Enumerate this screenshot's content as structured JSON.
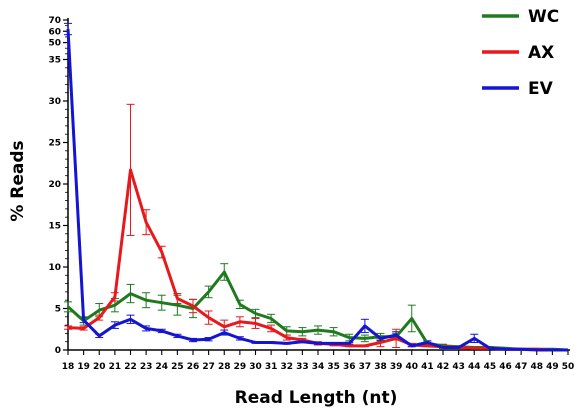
{
  "chart_data": {
    "type": "line",
    "title": "",
    "xlabel": "Read Length (nt)",
    "ylabel": "% Reads",
    "x": [
      18,
      19,
      20,
      21,
      22,
      23,
      24,
      25,
      26,
      27,
      28,
      29,
      30,
      31,
      32,
      33,
      34,
      35,
      36,
      37,
      38,
      39,
      40,
      41,
      42,
      43,
      44,
      45,
      46,
      47,
      48,
      49,
      50
    ],
    "y_axis_lower": {
      "ticks": [
        0,
        5,
        10,
        15,
        20,
        25,
        30
      ],
      "range": [
        0,
        35
      ]
    },
    "y_axis_upper_ticks": [
      35,
      50,
      60,
      70
    ],
    "xlim": [
      18,
      50
    ],
    "legend": {
      "position": "top-right"
    },
    "series": [
      {
        "name": "WC",
        "color": "#1f7a1f",
        "values": [
          5.2,
          3.5,
          4.8,
          5.4,
          6.8,
          6.0,
          5.7,
          5.4,
          5.0,
          7.0,
          9.4,
          5.5,
          4.4,
          3.8,
          2.3,
          2.2,
          2.4,
          2.2,
          1.5,
          1.4,
          1.6,
          1.6,
          3.8,
          0.8,
          0.5,
          0.4,
          0.3,
          0.3,
          0.2,
          0.1,
          0.1,
          0.1,
          0.0
        ],
        "errors": [
          0.6,
          0.5,
          0.8,
          0.8,
          1.1,
          0.9,
          0.9,
          1.2,
          1.1,
          0.7,
          1.0,
          0.5,
          0.5,
          0.5,
          0.5,
          0.5,
          0.5,
          0.5,
          0.4,
          0.4,
          0.4,
          0.4,
          1.6,
          0.3,
          0.2,
          0.1,
          0.1,
          0.1,
          0.1,
          0.05,
          0.05,
          0.05,
          0.0
        ]
      },
      {
        "name": "AX",
        "color": "#e8191c",
        "values": [
          2.7,
          2.6,
          3.9,
          6.4,
          21.7,
          15.4,
          11.8,
          6.2,
          5.3,
          3.9,
          2.8,
          3.4,
          3.2,
          2.6,
          1.5,
          1.2,
          0.8,
          0.7,
          0.5,
          0.5,
          0.9,
          1.4,
          0.6,
          0.5,
          0.4,
          0.3,
          0.2,
          0.2,
          0.1,
          0.1,
          0.1,
          0.0,
          0.0
        ],
        "errors": [
          0.2,
          0.2,
          0.3,
          0.5,
          7.9,
          1.5,
          0.7,
          0.6,
          0.8,
          0.8,
          0.8,
          0.6,
          0.6,
          0.4,
          0.3,
          0.2,
          0.2,
          0.2,
          0.1,
          0.1,
          0.5,
          1.1,
          0.2,
          0.1,
          0.1,
          0.1,
          0.05,
          0.05,
          0.05,
          0.0,
          0.0,
          0.0,
          0.0
        ]
      },
      {
        "name": "EV",
        "color": "#1414d2",
        "values": [
          62.0,
          3.6,
          1.7,
          3.0,
          3.7,
          2.6,
          2.3,
          1.7,
          1.2,
          1.3,
          2.1,
          1.4,
          0.9,
          0.9,
          0.8,
          1.0,
          0.8,
          0.8,
          0.8,
          2.9,
          1.4,
          1.8,
          0.5,
          0.9,
          0.3,
          0.3,
          1.4,
          0.2,
          0.1,
          0.1,
          0.0,
          0.0,
          0.0
        ],
        "errors": [
          5.0,
          0.3,
          0.2,
          0.4,
          0.5,
          0.3,
          0.2,
          0.2,
          0.2,
          0.2,
          0.3,
          0.2,
          0.1,
          0.1,
          0.1,
          0.1,
          0.1,
          0.1,
          0.1,
          0.8,
          0.3,
          0.4,
          0.1,
          0.2,
          0.1,
          0.1,
          0.5,
          0.05,
          0.05,
          0.0,
          0.0,
          0.0,
          0.0
        ]
      }
    ]
  }
}
